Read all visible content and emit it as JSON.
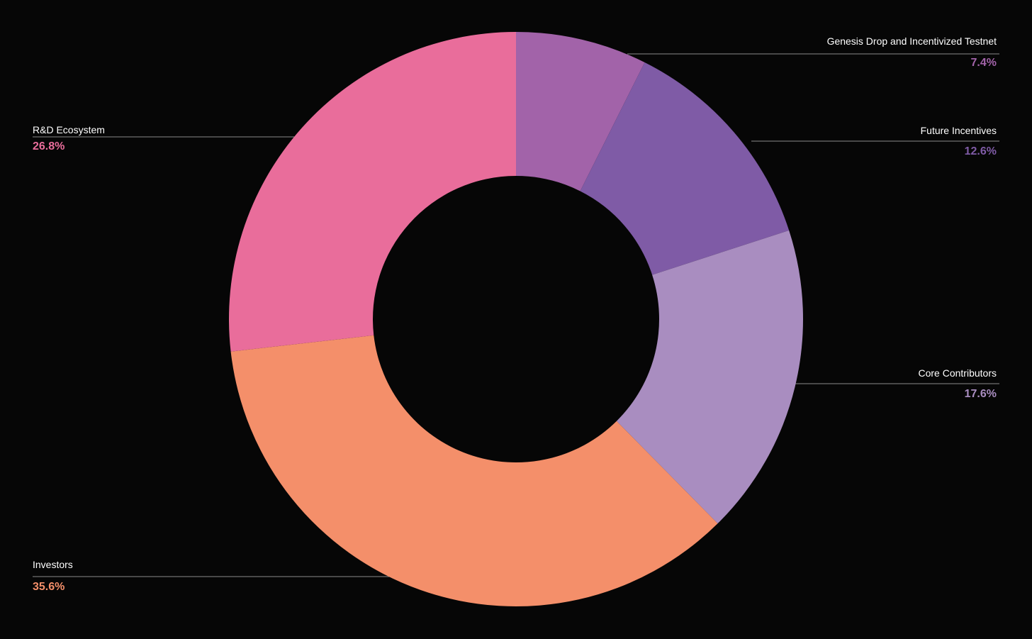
{
  "chart_data": {
    "type": "pie",
    "variant": "donut",
    "title": "",
    "categories": [
      "Genesis Drop and Incentivized Testnet",
      "Future Incentives",
      "Core Contributors",
      "Investors",
      "R&D Ecosystem"
    ],
    "values": [
      7.4,
      12.6,
      17.6,
      35.6,
      26.8
    ],
    "value_labels": [
      "7.4%",
      "12.6%",
      "17.6%",
      "35.6%",
      "26.8%"
    ],
    "colors": [
      "#a263a9",
      "#7f5ba6",
      "#a98dc0",
      "#f48f6a",
      "#e96d9b"
    ],
    "start_angle": "top (12 o'clock)",
    "direction": "clockwise",
    "legend": "none (leader-line labels)"
  },
  "colors": {
    "background": "#060606",
    "label_text": "#ffffff",
    "leader_line": "#8a8a8a"
  }
}
